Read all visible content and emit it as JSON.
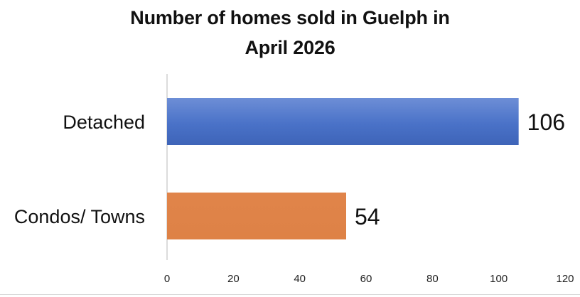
{
  "chart_data": {
    "type": "bar",
    "orientation": "horizontal",
    "title": "Number of homes sold in Guelph in April 2026",
    "title_lines": [
      "Number of homes sold in Guelph in",
      "April 2026"
    ],
    "categories": [
      "Detached",
      "Condos/ Towns"
    ],
    "values": [
      106,
      54
    ],
    "data_labels": [
      "106",
      "54"
    ],
    "colors": [
      "#4a72c8",
      "#e0844a"
    ],
    "xlim": [
      0,
      120
    ],
    "xticks": [
      0,
      20,
      40,
      60,
      80,
      100,
      120
    ],
    "xtick_labels": [
      "0",
      "20",
      "40",
      "60",
      "80",
      "100",
      "120"
    ],
    "xlabel": "",
    "ylabel": "",
    "grid": false,
    "legend": "none"
  }
}
